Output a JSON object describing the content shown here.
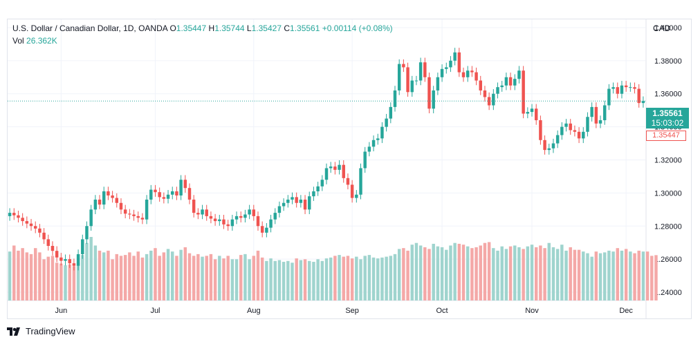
{
  "legend": {
    "symbol": "U.S. Dollar / Canadian Dollar, 1D, OANDA",
    "o_label": "O",
    "o": "1.35447",
    "h_label": "H",
    "h": "1.35744",
    "l_label": "L",
    "l": "1.35427",
    "c_label": "C",
    "c": "1.35561",
    "change": "+0.00114 (+0.08%)",
    "vol_label": "Vol",
    "vol": "26.362K"
  },
  "currency": "CAD",
  "price_tag": {
    "price": "1.35561",
    "countdown": "15:03:02"
  },
  "open_tag": "1.35447",
  "brand": "TradingView",
  "colors": {
    "up": "#26a69a",
    "down": "#ef5350",
    "vol_up": "#9fd4ce",
    "vol_down": "#f4a8a7",
    "grid": "#f0f3fa"
  },
  "chart_data": {
    "type": "candlestick",
    "title": "U.S. Dollar / Canadian Dollar, 1D, OANDA",
    "ylabel": "CAD",
    "ylim": [
      1.235,
      1.405
    ],
    "y_ticks": [
      "1.40000",
      "1.38000",
      "1.36000",
      "1.34000",
      "1.32000",
      "1.30000",
      "1.28000",
      "1.26000",
      "1.24000"
    ],
    "x_ticks": [
      "Jun",
      "Jul",
      "Aug",
      "Sep",
      "Oct",
      "Nov",
      "Dec"
    ],
    "month_start_index": [
      12,
      34,
      57,
      80,
      101,
      122,
      144
    ],
    "grid": true,
    "last_close": 1.35561,
    "close": [
      1.288,
      1.2865,
      1.285,
      1.283,
      1.2815,
      1.28,
      1.2785,
      1.276,
      1.272,
      1.268,
      1.265,
      1.261,
      1.259,
      1.26,
      1.2575,
      1.256,
      1.263,
      1.272,
      1.28,
      1.29,
      1.296,
      1.293,
      1.301,
      1.2985,
      1.297,
      1.294,
      1.29,
      1.2875,
      1.287,
      1.286,
      1.285,
      1.284,
      1.296,
      1.302,
      1.3005,
      1.2975,
      1.2965,
      1.299,
      1.301,
      1.2985,
      1.308,
      1.303,
      1.296,
      1.288,
      1.287,
      1.29,
      1.286,
      1.2845,
      1.283,
      1.284,
      1.281,
      1.28,
      1.284,
      1.286,
      1.285,
      1.287,
      1.29,
      1.286,
      1.28,
      1.276,
      1.279,
      1.284,
      1.288,
      1.292,
      1.294,
      1.296,
      1.2975,
      1.294,
      1.296,
      1.29,
      1.298,
      1.301,
      1.304,
      1.308,
      1.315,
      1.316,
      1.314,
      1.317,
      1.309,
      1.305,
      1.297,
      1.299,
      1.315,
      1.325,
      1.328,
      1.332,
      1.333,
      1.34,
      1.345,
      1.352,
      1.362,
      1.378,
      1.376,
      1.361,
      1.368,
      1.368,
      1.379,
      1.37,
      1.351,
      1.362,
      1.37,
      1.375,
      1.376,
      1.38,
      1.385,
      1.373,
      1.37,
      1.374,
      1.373,
      1.368,
      1.362,
      1.358,
      1.353,
      1.36,
      1.364,
      1.365,
      1.37,
      1.365,
      1.369,
      1.374,
      1.348,
      1.349,
      1.351,
      1.344,
      1.332,
      1.326,
      1.327,
      1.33,
      1.335,
      1.34,
      1.342,
      1.338,
      1.337,
      1.333,
      1.337,
      1.346,
      1.352,
      1.342,
      1.344,
      1.353,
      1.363,
      1.364,
      1.36,
      1.365,
      1.364,
      1.364,
      1.363,
      1.3544,
      1.3556
    ],
    "volume_k": [
      28.5,
      32.0,
      29.0,
      30.5,
      28.0,
      27.0,
      30.5,
      28.0,
      24.0,
      25.5,
      26.0,
      22.0,
      21.5,
      20.5,
      21.0,
      20.0,
      22.0,
      26.5,
      33.5,
      37.0,
      32.0,
      29.0,
      28.0,
      29.0,
      24.0,
      27.0,
      26.0,
      26.5,
      28.0,
      26.0,
      28.5,
      25.0,
      27.0,
      29.0,
      30.5,
      26.0,
      28.0,
      30.0,
      28.5,
      26.0,
      29.5,
      31.0,
      27.5,
      26.0,
      27.0,
      25.5,
      26.0,
      27.0,
      24.0,
      26.0,
      24.5,
      26.0,
      24.0,
      24.0,
      26.5,
      27.0,
      24.0,
      26.0,
      29.0,
      25.0,
      23.0,
      24.5,
      23.0,
      23.5,
      22.5,
      23.0,
      22.0,
      24.5,
      23.5,
      24.0,
      23.0,
      22.5,
      24.0,
      23.0,
      24.5,
      25.0,
      26.0,
      26.5,
      25.5,
      26.0,
      24.5,
      25.5,
      24.0,
      26.0,
      26.5,
      25.0,
      24.5,
      25.0,
      25.5,
      26.0,
      27.0,
      30.0,
      30.5,
      29.0,
      32.5,
      33.5,
      32.0,
      31.0,
      30.0,
      33.0,
      31.5,
      31.0,
      29.5,
      32.0,
      33.5,
      33.0,
      32.5,
      31.5,
      30.5,
      31.0,
      32.0,
      33.5,
      34.0,
      30.5,
      29.0,
      31.5,
      30.0,
      31.5,
      32.0,
      31.0,
      30.0,
      31.5,
      32.5,
      31.0,
      32.0,
      30.5,
      33.5,
      31.0,
      30.0,
      32.5,
      29.0,
      31.0,
      29.5,
      29.5,
      28.5,
      27.5,
      25.5,
      28.5,
      27.5,
      28.0,
      29.0,
      28.5,
      30.5,
      29.0,
      30.0,
      28.5,
      27.5,
      29.0,
      28.5,
      28.5,
      26.0,
      26.4
    ]
  }
}
